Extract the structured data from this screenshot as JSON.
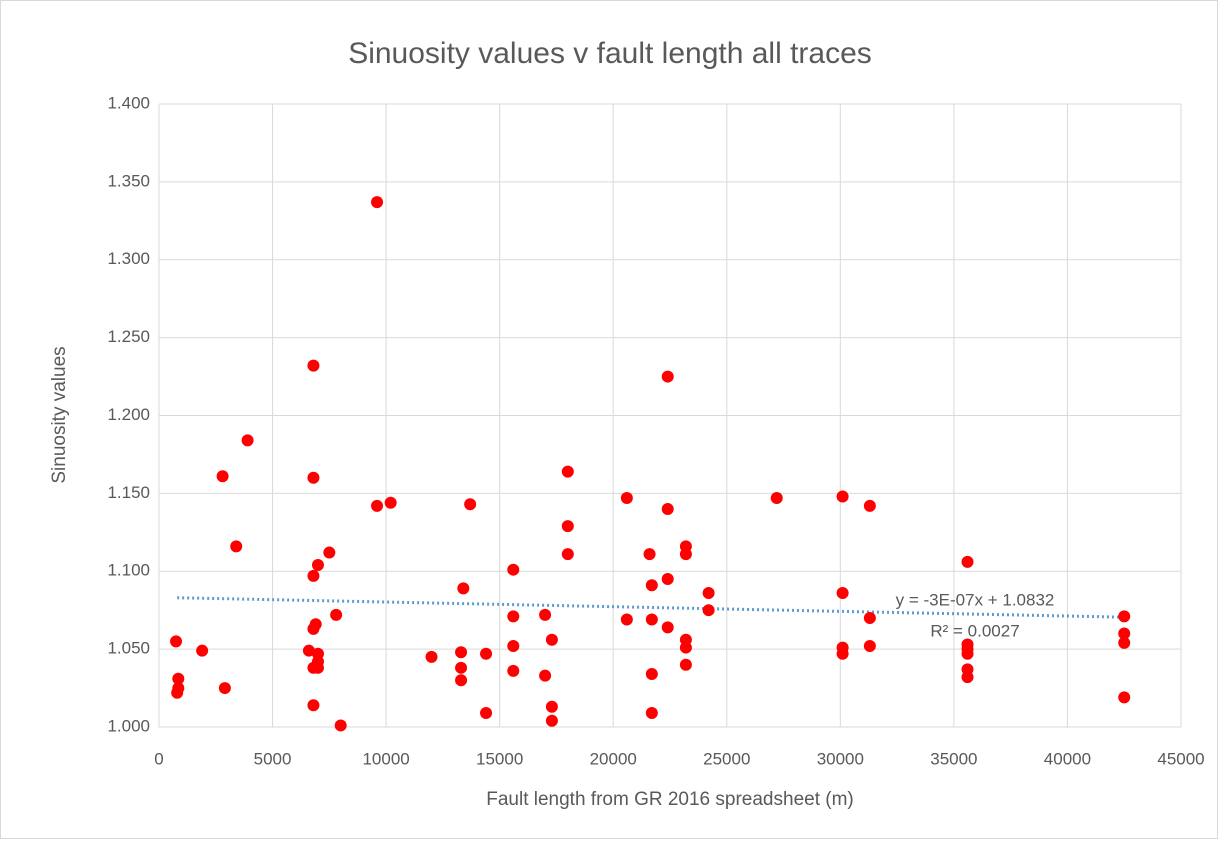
{
  "chart_data": {
    "type": "scatter",
    "title": "Sinuosity values v fault length all traces",
    "xlabel": "Fault length from GR 2016 spreadsheet (m)",
    "ylabel": "Sinuosity values",
    "color": "#ff0000",
    "grid": true,
    "xlim": [
      0,
      45000
    ],
    "xticks": [
      0,
      5000,
      10000,
      15000,
      20000,
      25000,
      30000,
      35000,
      40000,
      45000
    ],
    "ylim": [
      1.0,
      1.4
    ],
    "yticks": [
      {
        "value": 1.0,
        "label": "1.000"
      },
      {
        "value": 1.05,
        "label": "1.050"
      },
      {
        "value": 1.1,
        "label": "1.100"
      },
      {
        "value": 1.15,
        "label": "1.150"
      },
      {
        "value": 1.2,
        "label": "1.200"
      },
      {
        "value": 1.25,
        "label": "1.250"
      },
      {
        "value": 1.3,
        "label": "1.300"
      },
      {
        "value": 1.35,
        "label": "1.350"
      },
      {
        "value": 1.4,
        "label": "1.400"
      }
    ],
    "x": [
      750,
      850,
      850,
      800,
      1900,
      2800,
      2900,
      3400,
      3900,
      6600,
      6800,
      6800,
      6800,
      6800,
      6800,
      6800,
      6900,
      7000,
      7000,
      7000,
      7000,
      7500,
      7800,
      8000,
      9600,
      9600,
      10200,
      12000,
      13300,
      13300,
      13300,
      13400,
      13700,
      14400,
      14400,
      15600,
      15600,
      15600,
      15600,
      17000,
      17000,
      17300,
      17300,
      17300,
      18000,
      18000,
      18000,
      20600,
      20600,
      21600,
      21700,
      21700,
      21700,
      21700,
      22400,
      22400,
      22400,
      22400,
      23200,
      23200,
      23200,
      23200,
      23200,
      24200,
      24200,
      27200,
      30100,
      30100,
      30100,
      30100,
      31300,
      31300,
      31300,
      35600,
      35600,
      35600,
      35600,
      35600,
      35600,
      42500,
      42500,
      42500,
      42500
    ],
    "values": [
      1.055,
      1.031,
      1.025,
      1.022,
      1.049,
      1.161,
      1.025,
      1.116,
      1.184,
      1.049,
      1.232,
      1.16,
      1.097,
      1.063,
      1.038,
      1.014,
      1.066,
      1.104,
      1.047,
      1.042,
      1.038,
      1.112,
      1.072,
      1.001,
      1.337,
      1.142,
      1.144,
      1.045,
      1.048,
      1.038,
      1.03,
      1.089,
      1.143,
      1.047,
      1.009,
      1.101,
      1.071,
      1.052,
      1.036,
      1.072,
      1.033,
      1.056,
      1.013,
      1.004,
      1.164,
      1.129,
      1.111,
      1.147,
      1.069,
      1.111,
      1.091,
      1.069,
      1.034,
      1.009,
      1.225,
      1.14,
      1.095,
      1.064,
      1.116,
      1.111,
      1.056,
      1.051,
      1.04,
      1.086,
      1.075,
      1.147,
      1.148,
      1.086,
      1.051,
      1.047,
      1.142,
      1.07,
      1.052,
      1.106,
      1.053,
      1.05,
      1.047,
      1.037,
      1.032,
      1.071,
      1.06,
      1.054,
      1.019
    ],
    "trendline": {
      "color": "#5b9bd5",
      "x": [
        800,
        42500
      ],
      "y": [
        1.083,
        1.0705
      ]
    },
    "annotations": [
      "y = -3E-07x + 1.0832",
      "R² = 0.0027"
    ]
  }
}
